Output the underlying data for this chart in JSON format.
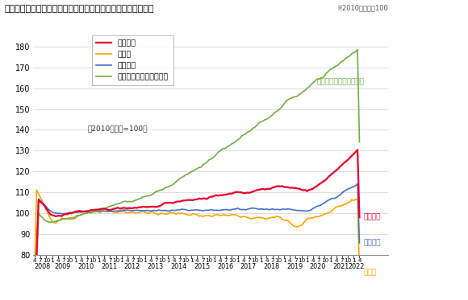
{
  "title": "＜不動産価格指数（住宅）（令和４年４月分・季節調整値）＞",
  "title_note": "※2010年平均＝100",
  "subtitle": "（2010年平均=100）",
  "ylim": [
    80,
    185
  ],
  "yticks": [
    80,
    90,
    100,
    110,
    120,
    130,
    140,
    150,
    160,
    170,
    180
  ],
  "color_sogo": "#e8002d",
  "color_tochi": "#ffa500",
  "color_kodate": "#4472c4",
  "color_mansion": "#70ad47",
  "label_sogo": "住宅総合",
  "label_tochi": "住宅地",
  "label_kodate": "戸建住宅",
  "label_mansion": "マンション（区分所有）",
  "ann_mansion": "マンション（区分所有）",
  "ann_sogo": "住宅総合",
  "ann_kodate": "戸建住宅",
  "ann_tochi": "住宅地",
  "bg_color": "#ffffff",
  "grid_color": "#d0d0d0",
  "start_year": 2008,
  "start_month": 4,
  "end_year": 2022,
  "end_month": 4
}
